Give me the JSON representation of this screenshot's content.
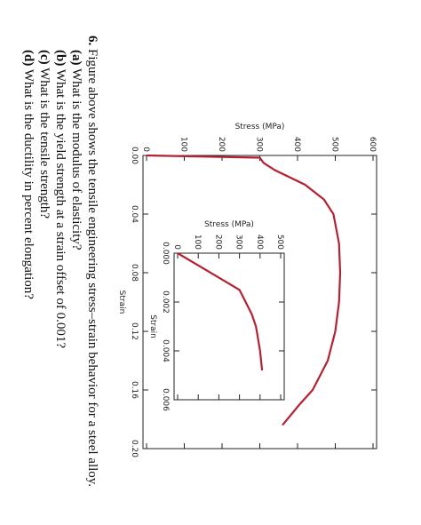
{
  "chart_data": [
    {
      "type": "line",
      "xlabel": "Strain",
      "ylabel": "Stress (MPa)",
      "color": "#b22232",
      "x": [
        0,
        0.0015,
        0.005,
        0.01,
        0.02,
        0.03,
        0.04,
        0.06,
        0.08,
        0.1,
        0.12,
        0.14,
        0.16,
        0.17,
        0.184
      ],
      "values": [
        0,
        300,
        310,
        340,
        420,
        470,
        495,
        510,
        513,
        510,
        500,
        480,
        440,
        405,
        360
      ],
      "xlim": [
        0,
        0.2
      ],
      "ylim": [
        0,
        600
      ],
      "xticks": [
        {
          "value": 0,
          "label": "0.00"
        },
        {
          "value": 0.04,
          "label": "0.04"
        },
        {
          "value": 0.08,
          "label": "0.08"
        },
        {
          "value": 0.12,
          "label": "0.12"
        },
        {
          "value": 0.16,
          "label": "0.16"
        },
        {
          "value": 0.2,
          "label": "0.20"
        }
      ],
      "yticks": [
        0,
        100,
        200,
        300,
        400,
        500,
        600
      ]
    },
    {
      "type": "line",
      "xlabel": "Strain",
      "ylabel": "Stress (MPa)",
      "color": "#b22232",
      "x": [
        0,
        0.0015,
        0.002,
        0.0025,
        0.003,
        0.004,
        0.0048
      ],
      "values": [
        0,
        300,
        330,
        360,
        380,
        400,
        410
      ],
      "xlim": [
        0,
        0.006
      ],
      "ylim": [
        0,
        500
      ],
      "xticks": [
        {
          "value": 0,
          "label": "0.000"
        },
        {
          "value": 0.002,
          "label": "0.002"
        },
        {
          "value": 0.004,
          "label": "0.004"
        },
        {
          "value": 0.006,
          "label": "0.006"
        }
      ],
      "yticks": [
        0,
        100,
        200,
        300,
        400,
        500
      ]
    }
  ],
  "question": {
    "number": "6.",
    "text": "Figure above shows the tensile engineering stress–strain behavior for a steel alloy.",
    "items": [
      {
        "label": "(a)",
        "text": "What is the modulus of elasticity?"
      },
      {
        "label": "(b)",
        "text": "What is the yield strength at a strain offset of 0.001?"
      },
      {
        "label": "(c)",
        "text": "What is the tensile strength?"
      },
      {
        "label": "(d)",
        "text": "What is the ductility in percent elongation?"
      }
    ]
  }
}
